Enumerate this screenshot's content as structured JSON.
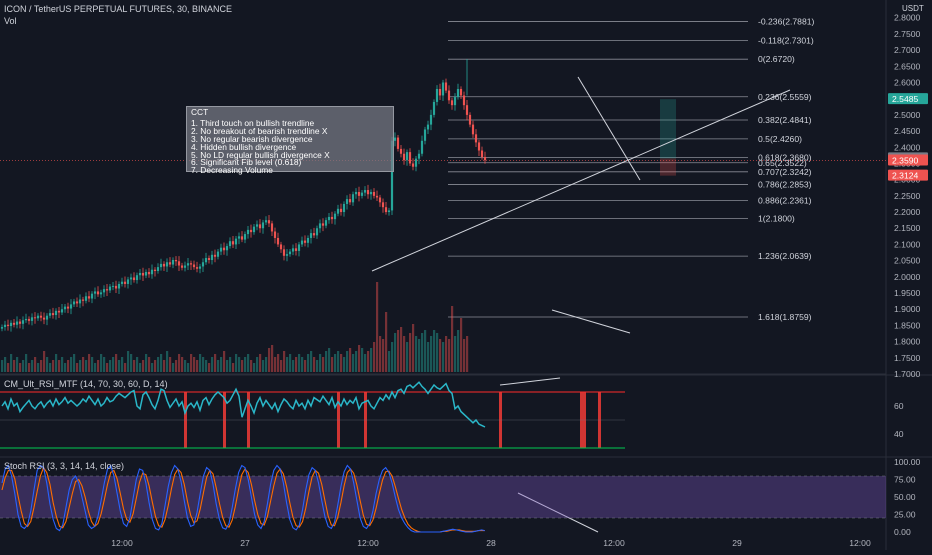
{
  "header": {
    "title": "ICON / TetherUS PERPETUAL FUTURES, 30, BINANCE",
    "vol": "Vol",
    "rsi_title": "CM_Ult_RSI_MTF (14, 70, 30, 60, D, 14)",
    "stoch_title": "Stoch RSI (3, 3, 14, 14, close)",
    "currency": "USDT"
  },
  "annotation": {
    "title": "CCT",
    "lines": [
      "1. Third touch on bullish trendline",
      "2. No breakout of bearish trendline X",
      "3. No regular bearish divergence",
      "4. Hidden bullish divergence",
      "5. No LD regular bullish divergence X",
      "6. Significant Fib level (0.618)",
      "7. Decreasing Volume"
    ]
  },
  "colors": {
    "background": "#131722",
    "up": "#26a69a",
    "down": "#ef5350",
    "rsi_line": "#2ab7c9",
    "stoch_k": "#2962ff",
    "stoch_d": "#ff6d00",
    "stoch_band": "#7e57c2",
    "rsi_upper": "#ff2b2b",
    "rsi_lower": "#00c853",
    "fib_line": "#b2b5be",
    "price_badge": "#ef5350",
    "target_badge": "#26a69a"
  },
  "chart_data": {
    "type": "candlestick",
    "price_axis": {
      "ticks": [
        "2.8000",
        "2.7500",
        "2.7000",
        "2.6500",
        "2.6000",
        "2.5500",
        "2.5000",
        "2.4500",
        "2.4000",
        "2.3500",
        "2.3000",
        "2.2500",
        "2.2000",
        "2.1500",
        "2.1000",
        "2.0500",
        "2.0000",
        "1.9500",
        "1.9000",
        "1.8500",
        "1.8000",
        "1.7500",
        "1.7000"
      ],
      "range": [
        1.7,
        2.83
      ]
    },
    "price_badges": [
      {
        "label": "2.5485",
        "value": 2.5485,
        "color": "#26a69a"
      },
      {
        "label": "2.3656",
        "value": 2.3656,
        "color": "#787b86"
      },
      {
        "label": "2.3590",
        "value": 2.359,
        "color": "#ef5350"
      },
      {
        "label": "2.3124",
        "value": 2.3124,
        "color": "#ef5350"
      }
    ],
    "fib_levels": [
      {
        "label": "-0.236(2.7881)",
        "value": 2.7881
      },
      {
        "label": "-0.118(2.7301)",
        "value": 2.7301
      },
      {
        "label": "0(2.6720)",
        "value": 2.672
      },
      {
        "label": "0.236(2.5559)",
        "value": 2.5559
      },
      {
        "label": "0.382(2.4841)",
        "value": 2.4841
      },
      {
        "label": "0.5(2.4260)",
        "value": 2.426
      },
      {
        "label": "0.618(2.3680)",
        "value": 2.368
      },
      {
        "label": "0.65(2.3522)",
        "value": 2.3522
      },
      {
        "label": "0.707(2.3242)",
        "value": 2.3242
      },
      {
        "label": "0.786(2.2853)",
        "value": 2.2853
      },
      {
        "label": "0.886(2.2361)",
        "value": 2.2361
      },
      {
        "label": "1(2.1800)",
        "value": 2.18
      },
      {
        "label": "1.236(2.0639)",
        "value": 2.0639
      },
      {
        "label": "1.618(1.8759)",
        "value": 1.8759
      }
    ],
    "time_axis": {
      "labels": [
        "12:00",
        "27",
        "12:00",
        "28",
        "12:00",
        "29",
        "12:00"
      ],
      "bar_index": [
        40,
        81,
        122,
        163,
        204,
        245,
        286
      ]
    },
    "close_series": [
      1.845,
      1.852,
      1.848,
      1.858,
      1.852,
      1.862,
      1.855,
      1.866,
      1.87,
      1.864,
      1.875,
      1.872,
      1.88,
      1.874,
      1.868,
      1.88,
      1.888,
      1.882,
      1.895,
      1.89,
      1.9,
      1.908,
      1.902,
      1.915,
      1.924,
      1.918,
      1.93,
      1.926,
      1.94,
      1.933,
      1.948,
      1.955,
      1.946,
      1.952,
      1.962,
      1.958,
      1.97,
      1.972,
      1.964,
      1.978,
      1.985,
      1.978,
      1.992,
      1.998,
      1.99,
      2.005,
      2.012,
      2.004,
      2.015,
      2.008,
      2.022,
      2.018,
      2.03,
      2.04,
      2.032,
      2.045,
      2.038,
      2.052,
      2.048,
      2.035,
      2.028,
      2.035,
      2.042,
      2.038,
      2.03,
      2.025,
      2.032,
      2.045,
      2.058,
      2.052,
      2.068,
      2.062,
      2.078,
      2.09,
      2.082,
      2.095,
      2.11,
      2.1,
      2.118,
      2.125,
      2.115,
      2.132,
      2.145,
      2.138,
      2.155,
      2.162,
      2.15,
      2.168,
      2.175,
      2.165,
      2.14,
      2.12,
      2.1,
      2.085,
      2.065,
      2.07,
      2.078,
      2.088,
      2.08,
      2.1,
      2.112,
      2.105,
      2.12,
      2.135,
      2.128,
      2.15,
      2.165,
      2.158,
      2.175,
      2.185,
      2.178,
      2.195,
      2.21,
      2.2,
      2.225,
      2.24,
      2.23,
      2.255,
      2.262,
      2.25,
      2.26,
      2.268,
      2.255,
      2.262,
      2.25,
      2.245,
      2.23,
      2.215,
      2.2,
      2.205,
      2.42,
      2.43,
      2.395,
      2.38,
      2.36,
      2.385,
      2.35,
      2.34,
      2.365,
      2.38,
      2.42,
      2.455,
      2.47,
      2.5,
      2.54,
      2.58,
      2.56,
      2.6,
      2.575,
      2.545,
      2.53,
      2.555,
      2.58,
      2.56,
      2.53,
      2.5,
      2.47,
      2.44,
      2.415,
      2.39,
      2.37,
      2.36
    ]
  },
  "rsi_panel": {
    "ticks": [
      "60",
      "40"
    ],
    "upper": 70,
    "lower": 30,
    "mid": 50,
    "range": [
      25,
      80
    ],
    "values": [
      60,
      63,
      58,
      65,
      60,
      62,
      56,
      59,
      64,
      60,
      58,
      61,
      63,
      59,
      62,
      64,
      60,
      65,
      61,
      63,
      66,
      62,
      64,
      60,
      62,
      65,
      63,
      67,
      64,
      61,
      65,
      60,
      62,
      66,
      63,
      64,
      67,
      69,
      66,
      68,
      70,
      71,
      60,
      58,
      68,
      70,
      66,
      61,
      58,
      64,
      72,
      71,
      64,
      59,
      65,
      60,
      63,
      55,
      60,
      62,
      59,
      63,
      57,
      64,
      66,
      61,
      65,
      68,
      70,
      66,
      62,
      64,
      68,
      72,
      67,
      52,
      58,
      64,
      60,
      55,
      62,
      66,
      60,
      64,
      58,
      62,
      56,
      61,
      65,
      63,
      60,
      58,
      64,
      60,
      62,
      58,
      64,
      60,
      66,
      63,
      67,
      64,
      61,
      66,
      59,
      63,
      60,
      65,
      61,
      64,
      62,
      66,
      58,
      62,
      64,
      60,
      58,
      62,
      66,
      64,
      68,
      65,
      70,
      66,
      71,
      72,
      69,
      74,
      75,
      73,
      77,
      74,
      72,
      69,
      72,
      75,
      73,
      72,
      74,
      76,
      71,
      69,
      58,
      60,
      56,
      52,
      50,
      48,
      50,
      47,
      46,
      45
    ]
  },
  "stoch_panel": {
    "ticks": [
      "100.00",
      "75.00",
      "50.00",
      "25.00",
      "0.00"
    ],
    "band": [
      20,
      80
    ],
    "k": [
      70,
      90,
      95,
      80,
      55,
      25,
      8,
      5,
      10,
      30,
      60,
      88,
      95,
      92,
      70,
      40,
      18,
      5,
      2,
      10,
      35,
      60,
      75,
      80,
      70,
      50,
      30,
      10,
      5,
      8,
      22,
      45,
      70,
      90,
      95,
      80,
      55,
      30,
      12,
      8,
      20,
      48,
      75,
      90,
      88,
      70,
      42,
      18,
      5,
      3,
      12,
      38,
      65,
      85,
      95,
      90,
      72,
      45,
      20,
      8,
      10,
      28,
      55,
      80,
      92,
      88,
      68,
      40,
      18,
      6,
      4,
      12,
      35,
      62,
      85,
      95,
      92,
      75,
      50,
      25,
      10,
      5,
      15,
      40,
      68,
      88,
      95,
      90,
      70,
      42,
      18,
      6,
      3,
      10,
      32,
      60,
      82,
      92,
      88,
      70,
      45,
      22,
      8,
      5,
      14,
      38,
      65,
      86,
      95,
      90,
      70,
      45,
      20,
      8,
      5,
      12,
      30,
      55,
      75,
      88,
      92,
      85,
      70,
      50,
      32,
      20,
      12,
      6,
      2,
      0,
      0,
      0,
      0,
      0,
      0,
      0,
      0,
      0,
      1,
      2,
      3,
      4,
      3,
      2,
      1,
      0,
      0,
      0,
      1,
      2,
      3,
      2
    ],
    "d": [
      60,
      78,
      88,
      88,
      76,
      52,
      30,
      12,
      8,
      15,
      35,
      58,
      80,
      92,
      85,
      68,
      42,
      22,
      8,
      6,
      15,
      35,
      55,
      72,
      75,
      66,
      50,
      30,
      15,
      8,
      12,
      26,
      46,
      68,
      85,
      88,
      76,
      55,
      33,
      18,
      14,
      26,
      48,
      71,
      84,
      82,
      66,
      43,
      22,
      9,
      7,
      18,
      38,
      62,
      82,
      90,
      85,
      68,
      44,
      24,
      13,
      16,
      33,
      56,
      78,
      88,
      83,
      63,
      41,
      21,
      9,
      7,
      17,
      37,
      61,
      82,
      90,
      85,
      68,
      45,
      25,
      12,
      10,
      22,
      44,
      66,
      84,
      90,
      83,
      65,
      42,
      21,
      9,
      7,
      15,
      34,
      58,
      79,
      88,
      84,
      68,
      45,
      23,
      10,
      9,
      21,
      42,
      66,
      85,
      90,
      84,
      67,
      45,
      24,
      11,
      9,
      17,
      34,
      55,
      74,
      86,
      87,
      80,
      65,
      48,
      32,
      20,
      11,
      6,
      3,
      1,
      0,
      0,
      0,
      0,
      0,
      0,
      0,
      1,
      1,
      2,
      3,
      3,
      3,
      2,
      1,
      1,
      1,
      1,
      2,
      2,
      2
    ]
  },
  "volume": [
    4,
    5,
    3,
    6,
    4,
    5,
    3,
    4,
    6,
    3,
    4,
    5,
    3,
    4,
    7,
    5,
    3,
    4,
    6,
    4,
    5,
    3,
    4,
    5,
    6,
    3,
    4,
    5,
    4,
    6,
    5,
    3,
    4,
    6,
    5,
    3,
    4,
    5,
    6,
    4,
    5,
    3,
    7,
    6,
    4,
    5,
    3,
    4,
    6,
    5,
    3,
    4,
    5,
    6,
    4,
    7,
    5,
    3,
    4,
    6,
    5,
    4,
    3,
    6,
    5,
    4,
    6,
    5,
    4,
    3,
    5,
    6,
    4,
    5,
    7,
    4,
    5,
    3,
    6,
    5,
    4,
    5,
    6,
    4,
    3,
    5,
    6,
    4,
    5,
    8,
    9,
    5,
    6,
    4,
    7,
    5,
    6,
    4,
    5,
    6,
    5,
    4,
    6,
    7,
    5,
    4,
    6,
    5,
    7,
    8,
    5,
    6,
    7,
    6,
    5,
    7,
    8,
    6,
    7,
    9,
    8,
    6,
    7,
    8,
    10,
    9,
    12,
    11,
    9,
    7,
    10,
    13,
    14,
    15,
    12,
    10,
    13,
    16,
    12,
    11,
    13,
    14,
    10,
    12,
    14,
    13,
    11,
    10,
    12,
    11,
    10,
    12,
    14,
    13,
    11,
    12
  ],
  "volume_spikes": [
    {
      "i": 125,
      "v": 30
    },
    {
      "i": 128,
      "v": 20
    },
    {
      "i": 150,
      "v": 22
    },
    {
      "i": 153,
      "v": 18
    }
  ],
  "rsi_bars": [
    61,
    74,
    82,
    112,
    121,
    166,
    193,
    194,
    199
  ]
}
